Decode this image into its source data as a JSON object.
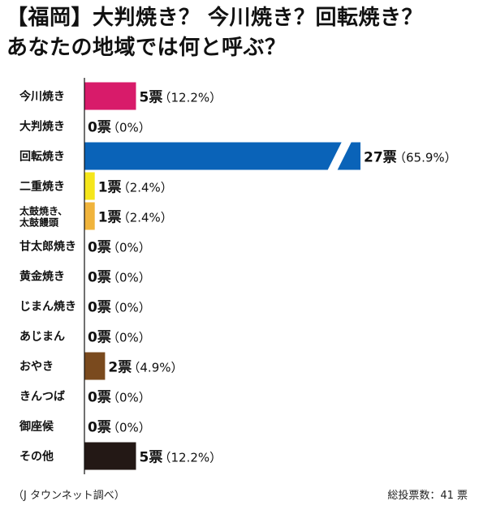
{
  "title_line1": "【福岡】大判焼き？ 今川焼き？回転焼き？",
  "title_line2": "あなたの地域では何と呼ぶ？",
  "source": "（J タウンネット調べ）",
  "total": "総投票数：41 票",
  "chart_data": {
    "type": "bar",
    "orientation": "horizontal",
    "axis_break": true,
    "categories": [
      "今川焼き",
      "大判焼き",
      "回転焼き",
      "二重焼き",
      "太鼓焼き、太鼓饅頭",
      "甘太郎焼き",
      "黄金焼き",
      "じまん焼き",
      "あじまん",
      "おやき",
      "きんつば",
      "御座候",
      "その他"
    ],
    "category_lines": [
      [
        "今川焼き"
      ],
      [
        "大判焼き"
      ],
      [
        "回転焼き"
      ],
      [
        "二重焼き"
      ],
      [
        "太鼓焼き、",
        "太鼓饅頭"
      ],
      [
        "甘太郎焼き"
      ],
      [
        "黄金焼き"
      ],
      [
        "じまん焼き"
      ],
      [
        "あじまん"
      ],
      [
        "おやき"
      ],
      [
        "きんつば"
      ],
      [
        "御座候"
      ],
      [
        "その他"
      ]
    ],
    "values": [
      5,
      0,
      27,
      1,
      1,
      0,
      0,
      0,
      0,
      2,
      0,
      0,
      5
    ],
    "percents": [
      "12.2%",
      "0%",
      "65.9%",
      "2.4%",
      "2.4%",
      "0%",
      "0%",
      "0%",
      "0%",
      "4.9%",
      "0%",
      "0%",
      "12.2%"
    ],
    "vote_labels": [
      "5票",
      "0票",
      "27票",
      "1票",
      "1票",
      "0票",
      "0票",
      "0票",
      "0票",
      "2票",
      "0票",
      "0票",
      "5票"
    ],
    "pct_labels": [
      "（12.2%）",
      "（0%）",
      "（65.9%）",
      "（2.4%）",
      "（2.4%）",
      "（0%）",
      "（0%）",
      "（0%）",
      "（0%）",
      "（4.9%）",
      "（0%）",
      "（0%）",
      "（12.2%）"
    ],
    "colors": [
      "#d81b6a",
      "#cccccc",
      "#0a63b8",
      "#f5e61b",
      "#f0b43c",
      "#cccccc",
      "#cccccc",
      "#cccccc",
      "#cccccc",
      "#7a4a1e",
      "#cccccc",
      "#cccccc",
      "#231815"
    ]
  }
}
